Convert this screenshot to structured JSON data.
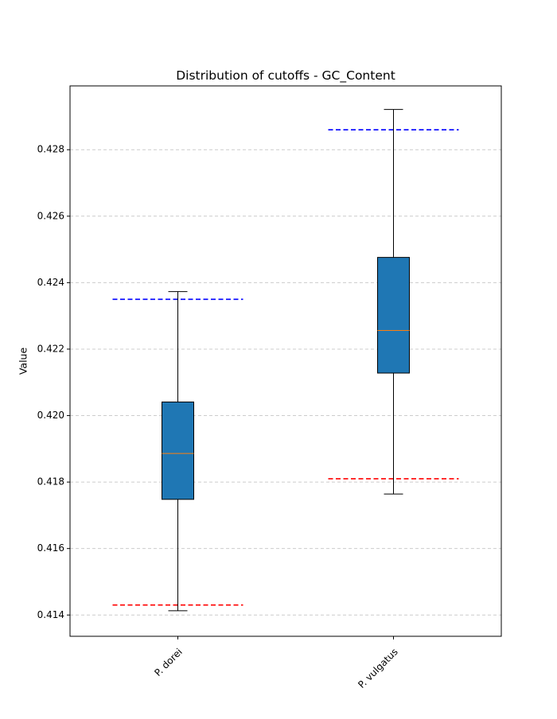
{
  "chart_data": {
    "type": "box",
    "title": "Distribution of cutoffs - GC_Content",
    "xlabel": "",
    "ylabel": "Value",
    "ylim": [
      0.41336,
      0.42992
    ],
    "yticks": [
      0.414,
      0.416,
      0.418,
      0.42,
      0.422,
      0.424,
      0.426,
      0.428
    ],
    "ytick_labels": [
      "0.414",
      "0.416",
      "0.418",
      "0.420",
      "0.422",
      "0.424",
      "0.426",
      "0.428"
    ],
    "categories": [
      "P. dorei",
      "P. vulgatus"
    ],
    "xtick_rotation_deg": 45,
    "grid": {
      "y": true,
      "x": false,
      "style": "dashed",
      "color": "#cccccc"
    },
    "boxes": [
      {
        "category": "P. dorei",
        "whisker_low": 0.41413,
        "q1": 0.41748,
        "median": 0.41886,
        "q3": 0.42041,
        "whisker_high": 0.42373
      },
      {
        "category": "P. vulgatus",
        "whisker_low": 0.41764,
        "q1": 0.42128,
        "median": 0.42256,
        "q3": 0.42476,
        "whisker_high": 0.42921
      }
    ],
    "reference_lines": [
      {
        "category": "P. dorei",
        "kind": "upper",
        "value": 0.4235,
        "color": "#0000ff",
        "style": "dashed"
      },
      {
        "category": "P. dorei",
        "kind": "lower",
        "value": 0.4143,
        "color": "#ff0000",
        "style": "dashed"
      },
      {
        "category": "P. vulgatus",
        "kind": "upper",
        "value": 0.4286,
        "color": "#0000ff",
        "style": "dashed"
      },
      {
        "category": "P. vulgatus",
        "kind": "lower",
        "value": 0.4181,
        "color": "#ff0000",
        "style": "dashed"
      }
    ],
    "colors": {
      "box_fill": "#1f77b4",
      "median": "#ff7f0e",
      "edge": "#000000"
    }
  }
}
